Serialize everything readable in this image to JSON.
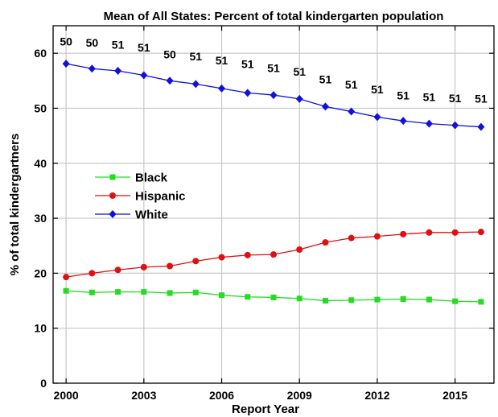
{
  "chart_data": {
    "type": "line",
    "title": "Mean of All States: Percent of total kindergarten population",
    "xlabel": "Report Year",
    "ylabel": "% of total kindergartners",
    "xlim": [
      1999.5,
      2016.5
    ],
    "ylim": [
      0,
      65
    ],
    "xticks": [
      2000,
      2003,
      2006,
      2009,
      2012,
      2015
    ],
    "yticks": [
      0,
      10,
      20,
      30,
      40,
      50,
      60
    ],
    "grid": true,
    "legend_position": "center-left",
    "x": [
      2000,
      2001,
      2002,
      2003,
      2004,
      2005,
      2006,
      2007,
      2008,
      2009,
      2010,
      2011,
      2012,
      2013,
      2014,
      2015,
      2016
    ],
    "series": [
      {
        "name": "Black",
        "color": "#22dd22",
        "marker": "square",
        "values": [
          16.8,
          16.5,
          16.6,
          16.6,
          16.4,
          16.5,
          16.0,
          15.7,
          15.6,
          15.4,
          15.0,
          15.1,
          15.2,
          15.3,
          15.2,
          14.9,
          14.8
        ]
      },
      {
        "name": "Hispanic",
        "color": "#dd1111",
        "marker": "circle",
        "values": [
          19.3,
          20.0,
          20.6,
          21.1,
          21.3,
          22.2,
          22.9,
          23.3,
          23.4,
          24.3,
          25.6,
          26.4,
          26.7,
          27.1,
          27.4,
          27.4,
          27.5
        ]
      },
      {
        "name": "White",
        "color": "#1111dd",
        "marker": "diamond",
        "values": [
          58.1,
          57.2,
          56.8,
          56.0,
          55.0,
          54.4,
          53.6,
          52.8,
          52.4,
          51.7,
          50.3,
          49.4,
          48.4,
          47.7,
          47.2,
          46.9,
          46.6
        ]
      }
    ],
    "annotations": {
      "labels": [
        "50",
        "50",
        "51",
        "51",
        "50",
        "51",
        "51",
        "51",
        "51",
        "51",
        "51",
        "51",
        "51",
        "51",
        "51",
        "51",
        "51"
      ],
      "y": [
        61.4,
        61.2,
        60.8,
        60.3,
        59.1,
        58.7,
        58.0,
        57.3,
        56.6,
        55.9,
        54.5,
        53.6,
        52.7,
        51.6,
        51.3,
        51.1,
        51.0
      ]
    }
  }
}
